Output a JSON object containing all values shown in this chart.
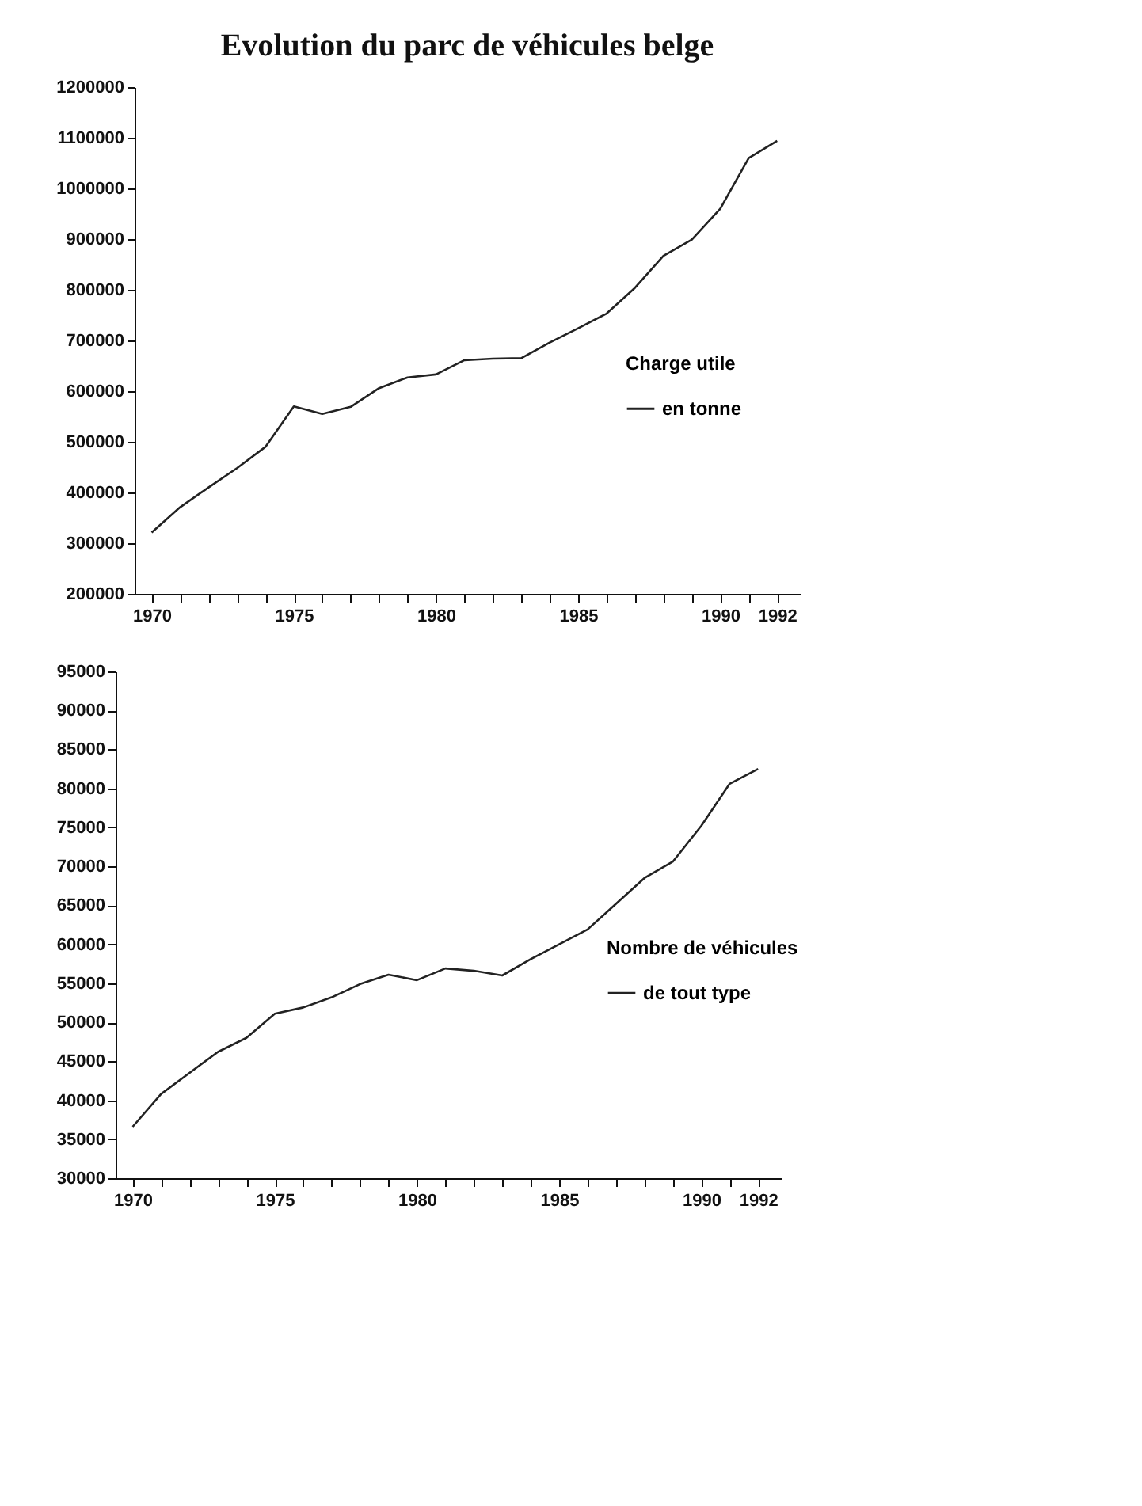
{
  "chart_data": [
    {
      "type": "line",
      "title": "Evolution du parc de véhicules belge",
      "legend_title": "Charge utile",
      "legend": "right",
      "line_style": "solid",
      "x": [
        1970,
        1971,
        1972,
        1973,
        1974,
        1975,
        1976,
        1977,
        1978,
        1979,
        1980,
        1981,
        1982,
        1983,
        1984,
        1985,
        1986,
        1987,
        1988,
        1989,
        1990,
        1991,
        1992
      ],
      "series": [
        {
          "name": "en tonne",
          "color": "#222222",
          "values": [
            321000,
            371000,
            410000,
            448000,
            490000,
            570000,
            555000,
            569000,
            606000,
            627000,
            633000,
            661000,
            664000,
            665000,
            696000,
            724000,
            753000,
            804000,
            867000,
            899000,
            960000,
            1060000,
            1094000
          ]
        }
      ],
      "xlim": [
        1969.4,
        1992.8
      ],
      "xticks": [
        1970,
        {
          "value": 1971,
          "label": null
        },
        {
          "value": 1972,
          "label": null
        },
        {
          "value": 1973,
          "label": null
        },
        {
          "value": 1974,
          "label": null
        },
        1975,
        {
          "value": 1976,
          "label": null
        },
        {
          "value": 1977,
          "label": null
        },
        {
          "value": 1978,
          "label": null
        },
        {
          "value": 1979,
          "label": null
        },
        1980,
        {
          "value": 1981,
          "label": null
        },
        {
          "value": 1982,
          "label": null
        },
        {
          "value": 1983,
          "label": null
        },
        {
          "value": 1984,
          "label": null
        },
        1985,
        {
          "value": 1986,
          "label": null
        },
        {
          "value": 1987,
          "label": null
        },
        {
          "value": 1988,
          "label": null
        },
        {
          "value": 1989,
          "label": null
        },
        1990,
        {
          "value": 1991,
          "label": null
        },
        1992
      ],
      "ylim": [
        200000,
        1200000
      ],
      "yticks": [
        200000,
        300000,
        400000,
        500000,
        600000,
        700000,
        800000,
        900000,
        1000000,
        1100000,
        1200000
      ]
    },
    {
      "type": "line",
      "legend_title": "Nombre de véhicules",
      "legend": "right",
      "line_style": "solid",
      "x": [
        1970,
        1971,
        1972,
        1973,
        1974,
        1975,
        1976,
        1977,
        1978,
        1979,
        1980,
        1981,
        1982,
        1983,
        1984,
        1985,
        1986,
        1987,
        1988,
        1989,
        1990,
        1991,
        1992
      ],
      "series": [
        {
          "name": "de tout type",
          "color": "#222222",
          "values": [
            36600,
            40800,
            43500,
            46200,
            48000,
            51100,
            51900,
            53200,
            54900,
            56100,
            55400,
            56900,
            56600,
            56000,
            58100,
            60000,
            61900,
            65200,
            68500,
            70600,
            75200,
            80600,
            82500
          ]
        }
      ],
      "xlim": [
        1969.4,
        1992.8
      ],
      "xticks": [
        1970,
        {
          "value": 1971,
          "label": null
        },
        {
          "value": 1972,
          "label": null
        },
        {
          "value": 1973,
          "label": null
        },
        {
          "value": 1974,
          "label": null
        },
        1975,
        {
          "value": 1976,
          "label": null
        },
        {
          "value": 1977,
          "label": null
        },
        {
          "value": 1978,
          "label": null
        },
        {
          "value": 1979,
          "label": null
        },
        1980,
        {
          "value": 1981,
          "label": null
        },
        {
          "value": 1982,
          "label": null
        },
        {
          "value": 1983,
          "label": null
        },
        {
          "value": 1984,
          "label": null
        },
        1985,
        {
          "value": 1986,
          "label": null
        },
        {
          "value": 1987,
          "label": null
        },
        {
          "value": 1988,
          "label": null
        },
        {
          "value": 1989,
          "label": null
        },
        1990,
        {
          "value": 1991,
          "label": null
        },
        1992
      ],
      "ylim": [
        30000,
        95000
      ],
      "yticks": [
        30000,
        35000,
        40000,
        45000,
        50000,
        55000,
        60000,
        65000,
        70000,
        75000,
        80000,
        85000,
        90000,
        95000
      ]
    }
  ]
}
